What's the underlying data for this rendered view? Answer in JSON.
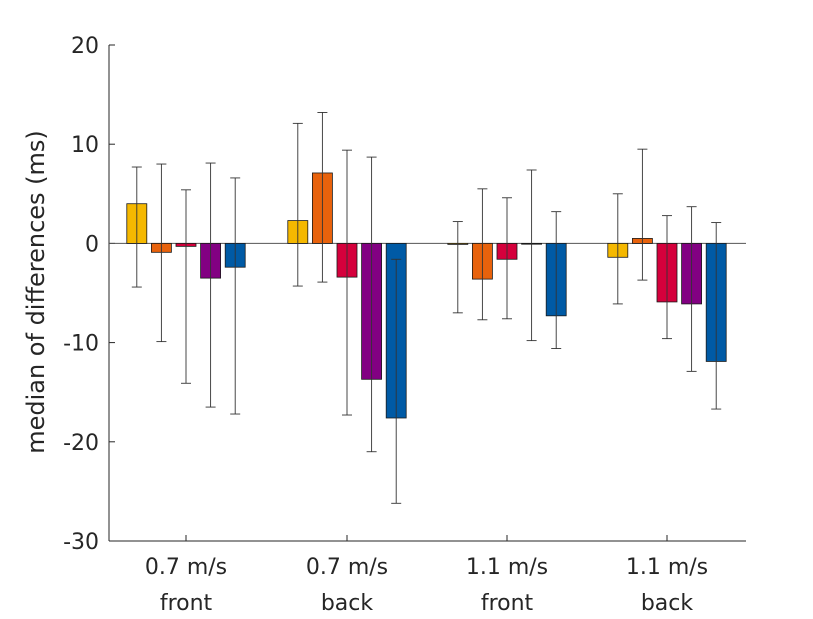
{
  "chart_data": {
    "type": "bar",
    "ylabel": "median of differences (ms)",
    "xlabel": "",
    "ylim": [
      -30,
      20
    ],
    "yticks": [
      -30,
      -20,
      -10,
      0,
      10,
      20
    ],
    "ytick_labels": [
      "-30",
      "-20",
      "-10",
      "0",
      "10",
      "20"
    ],
    "grid": false,
    "zero_line": true,
    "categories": [
      {
        "line1": "0.7 m/s",
        "line2": "front"
      },
      {
        "line1": "0.7 m/s",
        "line2": "back"
      },
      {
        "line1": "1.1 m/s",
        "line2": "front"
      },
      {
        "line1": "1.1 m/s",
        "line2": "back"
      }
    ],
    "series": [
      {
        "color": "#F5B800",
        "values": [
          4.0,
          2.3,
          -0.1,
          -1.4
        ],
        "error_low": [
          -4.4,
          -4.3,
          -7.0,
          -6.1
        ],
        "error_high": [
          7.7,
          12.1,
          2.2,
          5.0
        ]
      },
      {
        "color": "#E8620C",
        "values": [
          -0.9,
          7.1,
          -3.6,
          0.5
        ],
        "error_low": [
          -9.9,
          -3.9,
          -7.7,
          -3.7
        ],
        "error_high": [
          8.0,
          13.2,
          5.5,
          9.5
        ]
      },
      {
        "color": "#D5003C",
        "values": [
          -0.3,
          -3.4,
          -1.6,
          -5.9
        ],
        "error_low": [
          -14.1,
          -17.3,
          -7.6,
          -9.6
        ],
        "error_high": [
          5.4,
          9.4,
          4.6,
          2.8
        ]
      },
      {
        "color": "#820082",
        "values": [
          -3.5,
          -13.7,
          0.0,
          -6.1
        ],
        "error_low": [
          -16.5,
          -21.0,
          -9.8,
          -12.9
        ],
        "error_high": [
          8.1,
          8.7,
          7.4,
          3.7
        ]
      },
      {
        "color": "#005AA5",
        "values": [
          -2.4,
          -17.6,
          -7.3,
          -11.9
        ],
        "error_low": [
          -17.2,
          -26.2,
          -10.6,
          -16.7
        ],
        "error_high": [
          6.6,
          -1.6,
          3.2,
          2.1
        ]
      }
    ]
  }
}
